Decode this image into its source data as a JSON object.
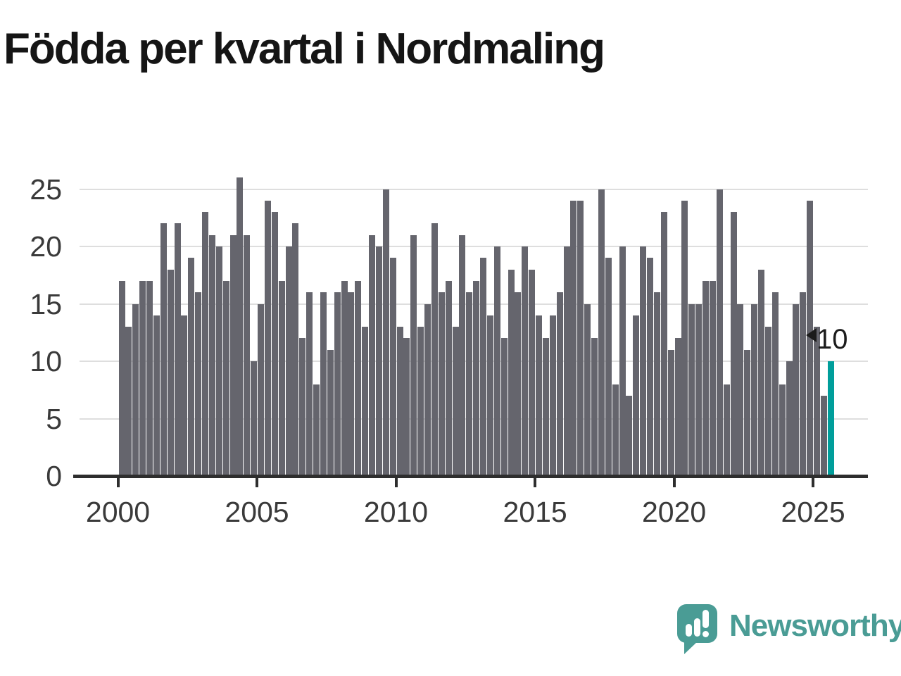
{
  "chart_data": {
    "type": "bar",
    "title": "Födda per kvartal i Nordmaling",
    "xlabel": "",
    "ylabel": "",
    "x_start": {
      "year": 2000,
      "quarter": 1
    },
    "x_unit": "quarter",
    "values": [
      17,
      13,
      15,
      17,
      17,
      14,
      22,
      18,
      22,
      14,
      19,
      16,
      23,
      21,
      20,
      17,
      21,
      26,
      21,
      10,
      15,
      24,
      23,
      17,
      20,
      22,
      12,
      16,
      8,
      16,
      11,
      16,
      17,
      16,
      17,
      13,
      21,
      20,
      25,
      19,
      13,
      12,
      21,
      13,
      15,
      22,
      16,
      17,
      13,
      21,
      16,
      17,
      19,
      14,
      20,
      12,
      18,
      16,
      20,
      18,
      14,
      12,
      14,
      16,
      20,
      24,
      24,
      15,
      12,
      25,
      19,
      8,
      20,
      7,
      14,
      20,
      19,
      16,
      23,
      11,
      12,
      24,
      15,
      15,
      17,
      17,
      25,
      8,
      23,
      15,
      11,
      15,
      18,
      13,
      16,
      8,
      10,
      15,
      16,
      24,
      13,
      7,
      10
    ],
    "highlight_index": 102,
    "annotation": {
      "text": "10",
      "target": "last-bar"
    },
    "x_tick_labels": [
      "2000",
      "2005",
      "2010",
      "2015",
      "2020",
      "2025"
    ],
    "y_tick_labels": [
      "0",
      "5",
      "10",
      "15",
      "20",
      "25"
    ],
    "ylim": [
      0,
      26
    ],
    "grid": "horizontal",
    "legend": "none",
    "colors": {
      "bar": "#65656d",
      "highlight": "#009e9b",
      "gridline": "#dedede",
      "axis": "#2e2e2e",
      "label": "#3a3a3a"
    }
  },
  "branding": {
    "logo_text": "Newsworthy",
    "logo_color": "#4a9c95"
  }
}
